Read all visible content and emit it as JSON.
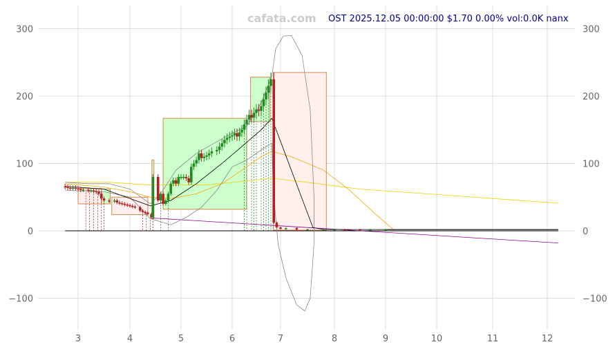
{
  "chart_data": {
    "type": "candlestick",
    "watermark": "cafata.com",
    "title": "OST 2025.12.05 00:00:00 $1.70 0.00% vol:0.0K nanx",
    "xlim": [
      2.5,
      12.6
    ],
    "ylim": [
      -145,
      335
    ],
    "x_ticks": [
      "3",
      "4",
      "5",
      "6",
      "7",
      "8",
      "9",
      "10",
      "11",
      "12"
    ],
    "y_ticks": [
      -100,
      0,
      100,
      200,
      300
    ],
    "grid": true,
    "colors": {
      "up": "#228b22",
      "down": "#b22222",
      "grid": "#dddddd",
      "ma": "#000000",
      "band": "#888888",
      "orange": "#ffa500",
      "yellow": "#f5d000",
      "trend": "#8b008b",
      "up_box": "#ccffcc",
      "down_box": "#fff0ee",
      "box_edge": "#d2884e"
    },
    "closes": [
      [
        2.75,
        65
      ],
      [
        2.8,
        64
      ],
      [
        2.85,
        63
      ],
      [
        2.9,
        64
      ],
      [
        2.95,
        63
      ],
      [
        3.0,
        62
      ],
      [
        3.05,
        61
      ],
      [
        3.1,
        61
      ],
      [
        3.2,
        60
      ],
      [
        3.25,
        60
      ],
      [
        3.3,
        59
      ],
      [
        3.35,
        58
      ],
      [
        3.4,
        55
      ],
      [
        3.45,
        48
      ],
      [
        3.5,
        45
      ],
      [
        3.6,
        44
      ],
      [
        3.7,
        45
      ],
      [
        3.75,
        42
      ],
      [
        3.8,
        41
      ],
      [
        3.85,
        40
      ],
      [
        3.9,
        39
      ],
      [
        3.95,
        38
      ],
      [
        4.0,
        37
      ],
      [
        4.05,
        36
      ],
      [
        4.1,
        35
      ],
      [
        4.2,
        30
      ],
      [
        4.25,
        28
      ],
      [
        4.3,
        27
      ],
      [
        4.35,
        25
      ],
      [
        4.42,
        20
      ],
      [
        4.45,
        80
      ],
      [
        4.55,
        45
      ],
      [
        4.6,
        55
      ],
      [
        4.65,
        40
      ],
      [
        4.7,
        45
      ],
      [
        4.75,
        55
      ],
      [
        4.8,
        70
      ],
      [
        4.85,
        75
      ],
      [
        4.9,
        70
      ],
      [
        4.95,
        80
      ],
      [
        5.0,
        80
      ],
      [
        5.05,
        80
      ],
      [
        5.1,
        78
      ],
      [
        5.15,
        72
      ],
      [
        5.2,
        95
      ],
      [
        5.25,
        100
      ],
      [
        5.3,
        105
      ],
      [
        5.35,
        115
      ],
      [
        5.4,
        108
      ],
      [
        5.45,
        110
      ],
      [
        5.5,
        112
      ],
      [
        5.55,
        115
      ],
      [
        5.6,
        118
      ],
      [
        5.7,
        120
      ],
      [
        5.75,
        125
      ],
      [
        5.8,
        130
      ],
      [
        5.85,
        135
      ],
      [
        5.9,
        138
      ],
      [
        5.95,
        140
      ],
      [
        6.0,
        142
      ],
      [
        6.05,
        145
      ],
      [
        6.1,
        140
      ],
      [
        6.15,
        146
      ],
      [
        6.2,
        150
      ],
      [
        6.25,
        158
      ],
      [
        6.3,
        165
      ],
      [
        6.35,
        172
      ],
      [
        6.4,
        168
      ],
      [
        6.45,
        175
      ],
      [
        6.5,
        180
      ],
      [
        6.55,
        178
      ],
      [
        6.6,
        185
      ],
      [
        6.65,
        195
      ],
      [
        6.7,
        205
      ],
      [
        6.75,
        215
      ],
      [
        6.8,
        225
      ],
      [
        6.86,
        12
      ],
      [
        6.92,
        5
      ],
      [
        7.0,
        3
      ],
      [
        7.1,
        4
      ],
      [
        7.3,
        2
      ],
      [
        7.5,
        2
      ],
      [
        7.8,
        2
      ],
      [
        8.0,
        2
      ],
      [
        8.2,
        1.8
      ],
      [
        8.5,
        1.7
      ],
      [
        8.7,
        1.7
      ],
      [
        9.0,
        1.7
      ]
    ],
    "flat_line": [
      [
        9.0,
        1.7
      ],
      [
        12.2,
        1.7
      ]
    ],
    "boxes": [
      {
        "kind": "down",
        "x": [
          3.0,
          3.45
        ],
        "y": [
          40,
          63
        ]
      },
      {
        "kind": "up",
        "x": [
          3.45,
          3.62
        ],
        "y": [
          40,
          62
        ]
      },
      {
        "kind": "down",
        "x": [
          3.65,
          4.35
        ],
        "y": [
          24,
          50
        ]
      },
      {
        "kind": "up",
        "x": [
          4.43,
          4.47
        ],
        "y": [
          18,
          105
        ]
      },
      {
        "kind": "up",
        "x": [
          4.65,
          6.3
        ],
        "y": [
          32,
          167
        ]
      },
      {
        "kind": "up",
        "x": [
          6.38,
          6.78
        ],
        "y": [
          162,
          228
        ]
      },
      {
        "kind": "down",
        "x": [
          6.85,
          7.85
        ],
        "y": [
          1,
          235
        ]
      }
    ],
    "signals": {
      "sell": [
        3.15,
        3.22,
        3.3,
        3.38,
        3.45,
        3.5,
        4.25,
        4.32,
        4.4,
        4.45
      ],
      "buy": [
        4.6,
        4.75,
        6.25,
        6.3,
        6.4,
        6.45,
        6.5,
        6.6,
        6.65,
        6.7,
        6.75,
        6.8
      ]
    },
    "lines": {
      "ma": [
        [
          2.75,
          66
        ],
        [
          3.5,
          62
        ],
        [
          4.0,
          48
        ],
        [
          4.4,
          37
        ],
        [
          4.8,
          45
        ],
        [
          5.3,
          70
        ],
        [
          5.8,
          100
        ],
        [
          6.2,
          125
        ],
        [
          6.6,
          150
        ],
        [
          6.82,
          167
        ],
        [
          7.2,
          90
        ],
        [
          7.6,
          5
        ],
        [
          7.8,
          2
        ],
        [
          12.2,
          1.7
        ]
      ],
      "band_upper": [
        [
          2.75,
          72
        ],
        [
          3.2,
          70
        ],
        [
          3.6,
          70
        ],
        [
          4.0,
          62
        ],
        [
          4.4,
          40
        ],
        [
          4.6,
          55
        ],
        [
          4.9,
          90
        ],
        [
          5.3,
          115
        ],
        [
          5.6,
          128
        ],
        [
          6.0,
          145
        ],
        [
          6.3,
          155
        ],
        [
          6.6,
          190
        ],
        [
          6.82,
          230
        ],
        [
          6.9,
          270
        ],
        [
          7.05,
          289
        ],
        [
          7.2,
          290
        ],
        [
          7.4,
          260
        ],
        [
          7.55,
          180
        ],
        [
          7.62,
          50
        ],
        [
          7.62,
          -20
        ],
        [
          7.55,
          -100
        ],
        [
          7.45,
          -119
        ]
      ],
      "band_lower": [
        [
          2.75,
          60
        ],
        [
          3.5,
          58
        ],
        [
          4.0,
          50
        ],
        [
          4.4,
          18
        ],
        [
          4.8,
          9
        ],
        [
          5.1,
          20
        ],
        [
          5.4,
          35
        ],
        [
          5.7,
          60
        ],
        [
          6.0,
          95
        ],
        [
          6.3,
          105
        ],
        [
          6.6,
          120
        ],
        [
          6.82,
          130
        ],
        [
          6.85,
          60
        ],
        [
          6.95,
          -20
        ],
        [
          7.1,
          -70
        ],
        [
          7.3,
          -110
        ],
        [
          7.45,
          -119
        ]
      ],
      "orange": [
        [
          2.75,
          70
        ],
        [
          3.5,
          65
        ],
        [
          4.0,
          58
        ],
        [
          4.4,
          50
        ],
        [
          4.8,
          48
        ],
        [
          5.3,
          55
        ],
        [
          5.8,
          70
        ],
        [
          6.2,
          90
        ],
        [
          6.6,
          110
        ],
        [
          6.82,
          118
        ],
        [
          7.2,
          110
        ],
        [
          7.8,
          90
        ],
        [
          8.3,
          60
        ],
        [
          8.8,
          25
        ],
        [
          9.15,
          2
        ],
        [
          12.2,
          1.7
        ]
      ],
      "yellow": [
        [
          2.75,
          72
        ],
        [
          3.6,
          72
        ],
        [
          4.4,
          68
        ],
        [
          5.5,
          68
        ],
        [
          6.3,
          74
        ],
        [
          6.82,
          78
        ],
        [
          7.5,
          72
        ],
        [
          8.5,
          62
        ],
        [
          10,
          54
        ],
        [
          12.2,
          41
        ]
      ],
      "trend": [
        [
          4.45,
          19
        ],
        [
          12.2,
          -18
        ]
      ],
      "zero": [
        [
          2.75,
          0
        ],
        [
          12.2,
          0
        ]
      ]
    }
  }
}
